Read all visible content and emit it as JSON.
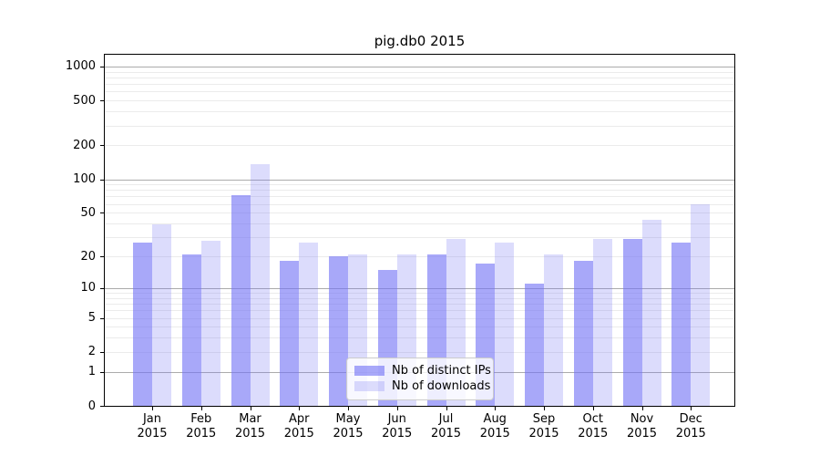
{
  "page": {
    "background": "#ffffff"
  },
  "chart_data": {
    "type": "bar",
    "title": "pig.db0 2015",
    "categories": [
      "Jan 2015",
      "Feb 2015",
      "Mar 2015",
      "Apr 2015",
      "May 2015",
      "Jun 2015",
      "Jul 2015",
      "Aug 2015",
      "Sep 2015",
      "Oct 2015",
      "Nov 2015",
      "Dec 2015"
    ],
    "series": [
      {
        "name": "Nb of distinct IPs",
        "color": "rgba(115,115,245,0.62)",
        "values": [
          27,
          21,
          72,
          18,
          20,
          15,
          21,
          17,
          11,
          18,
          29,
          27
        ]
      },
      {
        "name": "Nb of downloads",
        "color": "rgba(115,115,245,0.25)",
        "values": [
          39,
          28,
          135,
          27,
          21,
          21,
          29,
          27,
          21,
          29,
          43,
          60
        ]
      }
    ],
    "xlabel": "",
    "ylabel": "",
    "yscale": "log1p",
    "ylim": [
      0,
      1200
    ],
    "y_ticks": [
      1000,
      500,
      200,
      100,
      50,
      20,
      10,
      5,
      2,
      1,
      0
    ],
    "grid": "horizontal, minor and major decade lines",
    "legend_position": "lower center",
    "colors": {
      "major_grid": "#ababab",
      "minor_grid": "#ebebeb",
      "axis": "#000000",
      "text": "#000000"
    }
  }
}
